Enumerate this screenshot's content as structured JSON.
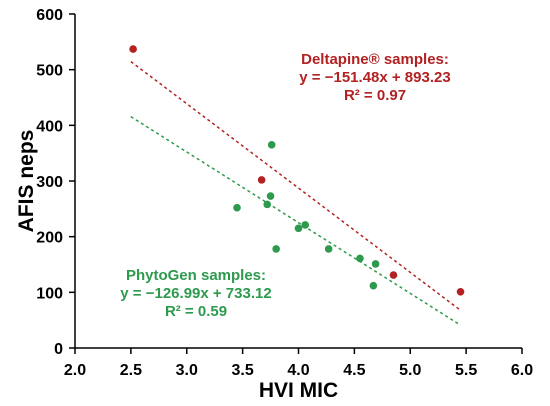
{
  "chart_data": {
    "type": "scatter",
    "xlabel": "HVI MIC",
    "ylabel": "AFIS neps",
    "xlim": [
      2.0,
      6.0
    ],
    "ylim": [
      0,
      600
    ],
    "xticks": [
      "2.0",
      "2.5",
      "3.0",
      "3.5",
      "4.0",
      "4.5",
      "5.0",
      "5.5",
      "6.0"
    ],
    "yticks": [
      "0",
      "100",
      "200",
      "300",
      "400",
      "500",
      "600"
    ],
    "grid": false,
    "series": [
      {
        "name": "Deltapine® samples",
        "color": "#b22222",
        "points": [
          {
            "x": 2.52,
            "y": 537
          },
          {
            "x": 3.67,
            "y": 302
          },
          {
            "x": 4.85,
            "y": 131
          },
          {
            "x": 5.45,
            "y": 101
          }
        ],
        "trendline": {
          "slope": -151.48,
          "intercept": 893.23,
          "x_range": [
            2.5,
            5.45
          ]
        }
      },
      {
        "name": "PhytoGen samples",
        "color": "#2e9a4e",
        "points": [
          {
            "x": 3.45,
            "y": 252
          },
          {
            "x": 3.72,
            "y": 258
          },
          {
            "x": 3.75,
            "y": 273
          },
          {
            "x": 3.76,
            "y": 365
          },
          {
            "x": 3.8,
            "y": 178
          },
          {
            "x": 4.0,
            "y": 215
          },
          {
            "x": 4.06,
            "y": 221
          },
          {
            "x": 4.27,
            "y": 178
          },
          {
            "x": 4.55,
            "y": 161
          },
          {
            "x": 4.67,
            "y": 112
          },
          {
            "x": 4.69,
            "y": 151
          }
        ],
        "trendline": {
          "slope": -126.99,
          "intercept": 733.12,
          "x_range": [
            2.5,
            5.45
          ]
        }
      }
    ],
    "annotations": [
      {
        "series": 0,
        "lines": [
          "Deltapine® samples:",
          "y = −151.48x + 893.23",
          "R² = 0.97"
        ]
      },
      {
        "series": 1,
        "lines": [
          "PhytoGen samples:",
          "y = −126.99x + 733.12",
          "R² = 0.59"
        ]
      }
    ]
  }
}
